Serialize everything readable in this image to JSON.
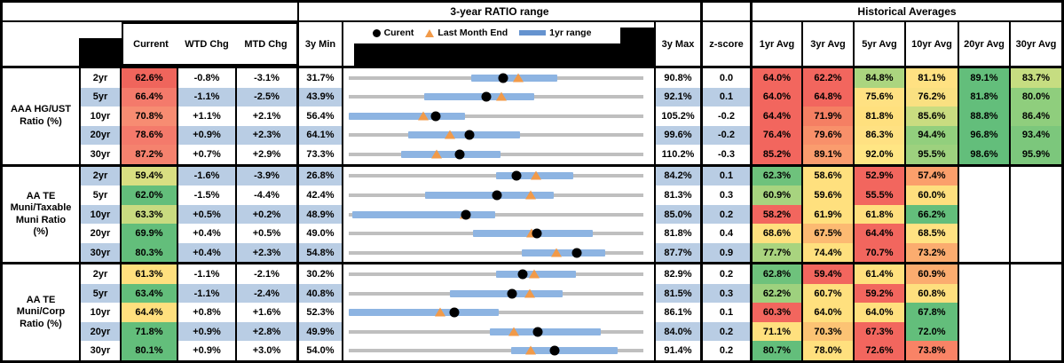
{
  "header": {
    "ratio_range_title": "3-year RATIO range",
    "historical_averages_title": "Historical Averages",
    "current_label": "Current",
    "wtd_label": "WTD Chg",
    "mtd_label": "MTD Chg",
    "min_label": "3y Min",
    "max_label": "3y Max",
    "zscore_label": "z-score",
    "avg_columns": [
      "1yr Avg",
      "3yr Avg",
      "5yr Avg",
      "10yr Avg",
      "20yr Avg",
      "30yr Avg"
    ],
    "legend": {
      "current": "Curent",
      "last_month_end": "Last Month End",
      "one_yr_range": "1yr range"
    }
  },
  "colors": {
    "stripe_blue": "#B9CDE4",
    "range_bar_blue": "#8DB4E2",
    "track_gray": "#BFBFBF",
    "current_marker": "#000000",
    "last_month_end_marker": "#F19A49",
    "legend_dash_blue": "#6593CF",
    "heat_red": "#F2665E",
    "heat_yellow": "#FFE07E",
    "heat_green": "#63BE7B",
    "border": "#000000"
  },
  "chart_data": {
    "type": "table",
    "title": "3-year RATIO range",
    "legend": [
      "Curent",
      "Last Month End",
      "1yr range"
    ],
    "tenors": [
      "2yr",
      "5yr",
      "10yr",
      "20yr",
      "30yr"
    ],
    "groups": [
      {
        "label": "AAA HG/UST Ratio (%)",
        "label_lines": [
          "AAA HG/UST",
          "Ratio (%)"
        ],
        "rows": [
          {
            "tenor": "2yr",
            "current": "62.6%",
            "current_bg": "#EF655C",
            "wtd": "-0.8%",
            "mtd": "-3.1%",
            "min": "31.7%",
            "max": "90.8%",
            "z": "0.0",
            "vmin": 31.7,
            "vmax": 90.8,
            "vcur": 62.6,
            "vlme": 65.7,
            "vlo": 56.3,
            "vhi": 73.6,
            "avgs": [
              {
                "v": "64.0%",
                "bg": "#F2665E"
              },
              {
                "v": "62.2%",
                "bg": "#F2665E"
              },
              {
                "v": "84.8%",
                "bg": "#ABD57F"
              },
              {
                "v": "81.1%",
                "bg": "#FFE182"
              },
              {
                "v": "89.1%",
                "bg": "#63BE7B"
              },
              {
                "v": "83.7%",
                "bg": "#C6DD81"
              }
            ]
          },
          {
            "tenor": "5yr",
            "current": "66.4%",
            "current_bg": "#F47A6B",
            "wtd": "-1.1%",
            "mtd": "-2.5%",
            "min": "43.9%",
            "max": "92.1%",
            "z": "0.1",
            "vmin": 43.9,
            "vmax": 92.1,
            "vcur": 66.4,
            "vlme": 68.9,
            "vlo": 56.2,
            "vhi": 74.3,
            "avgs": [
              {
                "v": "64.0%",
                "bg": "#F2665E"
              },
              {
                "v": "64.8%",
                "bg": "#F2665E"
              },
              {
                "v": "75.6%",
                "bg": "#FFE182"
              },
              {
                "v": "76.2%",
                "bg": "#F9E081"
              },
              {
                "v": "81.8%",
                "bg": "#63BE7B"
              },
              {
                "v": "80.0%",
                "bg": "#8FCE7D"
              }
            ]
          },
          {
            "tenor": "10yr",
            "current": "70.8%",
            "current_bg": "#F78C72",
            "wtd": "+1.1%",
            "mtd": "+2.1%",
            "min": "56.4%",
            "max": "105.2%",
            "z": "-0.2",
            "vmin": 56.4,
            "vmax": 105.2,
            "vcur": 70.8,
            "vlme": 68.7,
            "vlo": 56.4,
            "vhi": 75.6,
            "avgs": [
              {
                "v": "64.4%",
                "bg": "#F2665E"
              },
              {
                "v": "71.9%",
                "bg": "#F57F63"
              },
              {
                "v": "81.8%",
                "bg": "#FFE07E"
              },
              {
                "v": "85.6%",
                "bg": "#C9DC80"
              },
              {
                "v": "88.8%",
                "bg": "#63BE7B"
              },
              {
                "v": "86.4%",
                "bg": "#8FCE7D"
              }
            ]
          },
          {
            "tenor": "20yr",
            "current": "78.6%",
            "current_bg": "#F47A6B",
            "wtd": "+0.9%",
            "mtd": "+2.3%",
            "min": "64.1%",
            "max": "99.6%",
            "z": "-0.2",
            "vmin": 64.1,
            "vmax": 99.6,
            "vcur": 78.6,
            "vlme": 76.3,
            "vlo": 71.3,
            "vhi": 84.7,
            "avgs": [
              {
                "v": "76.4%",
                "bg": "#F2665E"
              },
              {
                "v": "79.6%",
                "bg": "#F8906A"
              },
              {
                "v": "86.3%",
                "bg": "#FFE182"
              },
              {
                "v": "94.4%",
                "bg": "#92CF7D"
              },
              {
                "v": "96.8%",
                "bg": "#63BE7B"
              },
              {
                "v": "93.4%",
                "bg": "#7CC77C"
              }
            ]
          },
          {
            "tenor": "30yr",
            "current": "87.2%",
            "current_bg": "#F5826E",
            "wtd": "+0.7%",
            "mtd": "+2.9%",
            "min": "73.3%",
            "max": "110.2%",
            "z": "-0.3",
            "vmin": 73.3,
            "vmax": 110.2,
            "vcur": 87.2,
            "vlme": 84.3,
            "vlo": 79.9,
            "vhi": 92.3,
            "avgs": [
              {
                "v": "85.2%",
                "bg": "#F2665E"
              },
              {
                "v": "89.1%",
                "bg": "#FA9C6E"
              },
              {
                "v": "92.0%",
                "bg": "#FFE684"
              },
              {
                "v": "95.5%",
                "bg": "#9DD17E"
              },
              {
                "v": "98.6%",
                "bg": "#63BE7B"
              },
              {
                "v": "95.9%",
                "bg": "#7CC77C"
              }
            ]
          }
        ]
      },
      {
        "label": "AA TE Muni/Taxable Muni Ratio (%)",
        "label_lines": [
          "AA TE",
          "Muni/Taxable",
          "Muni Ratio",
          "(%)"
        ],
        "rows": [
          {
            "tenor": "2yr",
            "current": "59.4%",
            "current_bg": "#D9DF82",
            "wtd": "-1.6%",
            "mtd": "-3.9%",
            "min": "26.8%",
            "max": "84.2%",
            "z": "0.1",
            "vmin": 26.8,
            "vmax": 84.2,
            "vcur": 59.4,
            "vlme": 63.3,
            "vlo": 55.5,
            "vhi": 70.6,
            "avgs": [
              {
                "v": "62.3%",
                "bg": "#6EC27C"
              },
              {
                "v": "58.6%",
                "bg": "#FFE07E"
              },
              {
                "v": "52.9%",
                "bg": "#F2665E"
              },
              {
                "v": "57.4%",
                "bg": "#FB9F6B"
              },
              null,
              null
            ]
          },
          {
            "tenor": "5yr",
            "current": "62.0%",
            "current_bg": "#63BE7B",
            "wtd": "-1.5%",
            "mtd": "-4.4%",
            "min": "42.4%",
            "max": "81.3%",
            "z": "0.3",
            "vmin": 42.4,
            "vmax": 81.3,
            "vcur": 62.0,
            "vlme": 66.4,
            "vlo": 52.5,
            "vhi": 69.5,
            "avgs": [
              {
                "v": "60.9%",
                "bg": "#A7D47F"
              },
              {
                "v": "59.6%",
                "bg": "#FFE07E"
              },
              {
                "v": "55.5%",
                "bg": "#F2665E"
              },
              {
                "v": "60.0%",
                "bg": "#FEDF7E"
              },
              null,
              null
            ]
          },
          {
            "tenor": "10yr",
            "current": "63.3%",
            "current_bg": "#C9DB80",
            "wtd": "+0.5%",
            "mtd": "+0.2%",
            "min": "48.9%",
            "max": "85.0%",
            "z": "0.2",
            "vmin": 48.9,
            "vmax": 85.0,
            "vcur": 63.3,
            "vlme": 63.1,
            "vlo": 49.3,
            "vhi": 66.8,
            "avgs": [
              {
                "v": "58.2%",
                "bg": "#F2665E"
              },
              {
                "v": "61.9%",
                "bg": "#FFE07E"
              },
              {
                "v": "61.8%",
                "bg": "#FFDF7E"
              },
              {
                "v": "66.2%",
                "bg": "#63BE7B"
              },
              null,
              null
            ]
          },
          {
            "tenor": "20yr",
            "current": "69.9%",
            "current_bg": "#63BE7B",
            "wtd": "+0.4%",
            "mtd": "+0.5%",
            "min": "49.0%",
            "max": "81.8%",
            "z": "0.4",
            "vmin": 49.0,
            "vmax": 81.8,
            "vcur": 69.9,
            "vlme": 69.4,
            "vlo": 62.8,
            "vhi": 76.2,
            "avgs": [
              {
                "v": "68.6%",
                "bg": "#FFE07E"
              },
              {
                "v": "67.5%",
                "bg": "#FCBA72"
              },
              {
                "v": "64.4%",
                "bg": "#F2665E"
              },
              {
                "v": "68.5%",
                "bg": "#FFE282"
              },
              null,
              null
            ]
          },
          {
            "tenor": "30yr",
            "current": "80.3%",
            "current_bg": "#63BE7B",
            "wtd": "+0.4%",
            "mtd": "+2.3%",
            "min": "54.8%",
            "max": "87.7%",
            "z": "0.9",
            "vmin": 54.8,
            "vmax": 87.7,
            "vcur": 80.3,
            "vlme": 78.0,
            "vlo": 74.1,
            "vhi": 83.4,
            "avgs": [
              {
                "v": "77.7%",
                "bg": "#A9D47F"
              },
              {
                "v": "74.4%",
                "bg": "#FFE07E"
              },
              {
                "v": "70.7%",
                "bg": "#F2665E"
              },
              {
                "v": "73.2%",
                "bg": "#FBAC6F"
              },
              null,
              null
            ]
          }
        ]
      },
      {
        "label": "AA TE Muni/Corp Ratio (%)",
        "label_lines": [
          "AA TE",
          "Muni/Corp",
          "Ratio (%)"
        ],
        "rows": [
          {
            "tenor": "2yr",
            "current": "61.3%",
            "current_bg": "#FFE07E",
            "wtd": "-1.1%",
            "mtd": "-2.1%",
            "min": "30.2%",
            "max": "82.9%",
            "z": "0.2",
            "vmin": 30.2,
            "vmax": 82.9,
            "vcur": 61.3,
            "vlme": 63.4,
            "vlo": 56.6,
            "vhi": 70.8,
            "avgs": [
              {
                "v": "62.8%",
                "bg": "#6EC27C"
              },
              {
                "v": "59.4%",
                "bg": "#F2665E"
              },
              {
                "v": "61.4%",
                "bg": "#FFE07E"
              },
              {
                "v": "60.9%",
                "bg": "#FBAC6F"
              },
              null,
              null
            ]
          },
          {
            "tenor": "5yr",
            "current": "63.4%",
            "current_bg": "#63BE7B",
            "wtd": "-1.1%",
            "mtd": "-2.4%",
            "min": "40.8%",
            "max": "81.5%",
            "z": "0.3",
            "vmin": 40.8,
            "vmax": 81.5,
            "vcur": 63.4,
            "vlme": 65.8,
            "vlo": 54.8,
            "vhi": 70.4,
            "avgs": [
              {
                "v": "62.2%",
                "bg": "#9ED17E"
              },
              {
                "v": "60.7%",
                "bg": "#FFE07E"
              },
              {
                "v": "59.2%",
                "bg": "#F2665E"
              },
              {
                "v": "60.8%",
                "bg": "#FEDF7E"
              },
              null,
              null
            ]
          },
          {
            "tenor": "10yr",
            "current": "64.4%",
            "current_bg": "#FFE07E",
            "wtd": "+0.8%",
            "mtd": "+1.6%",
            "min": "52.3%",
            "max": "86.1%",
            "z": "0.1",
            "vmin": 52.3,
            "vmax": 86.1,
            "vcur": 64.4,
            "vlme": 62.8,
            "vlo": 52.3,
            "vhi": 69.5,
            "avgs": [
              {
                "v": "60.3%",
                "bg": "#F2665E"
              },
              {
                "v": "64.0%",
                "bg": "#FFE07E"
              },
              {
                "v": "64.0%",
                "bg": "#FFE07E"
              },
              {
                "v": "67.8%",
                "bg": "#63BE7B"
              },
              null,
              null
            ]
          },
          {
            "tenor": "20yr",
            "current": "71.8%",
            "current_bg": "#63BE7B",
            "wtd": "+0.9%",
            "mtd": "+2.8%",
            "min": "49.9%",
            "max": "84.0%",
            "z": "0.2",
            "vmin": 49.9,
            "vmax": 84.0,
            "vcur": 71.8,
            "vlme": 69.0,
            "vlo": 66.2,
            "vhi": 79.1,
            "avgs": [
              {
                "v": "71.1%",
                "bg": "#FFE07E"
              },
              {
                "v": "70.3%",
                "bg": "#FCC374"
              },
              {
                "v": "67.3%",
                "bg": "#F2665E"
              },
              {
                "v": "72.0%",
                "bg": "#63BE7B"
              },
              null,
              null
            ]
          },
          {
            "tenor": "30yr",
            "current": "80.1%",
            "current_bg": "#63BE7B",
            "wtd": "+0.9%",
            "mtd": "+3.0%",
            "min": "54.0%",
            "max": "91.4%",
            "z": "0.2",
            "vmin": 54.0,
            "vmax": 91.4,
            "vcur": 80.1,
            "vlme": 77.1,
            "vlo": 74.6,
            "vhi": 88.1,
            "avgs": [
              {
                "v": "80.7%",
                "bg": "#63BE7B"
              },
              {
                "v": "78.0%",
                "bg": "#FFE07E"
              },
              {
                "v": "72.6%",
                "bg": "#F2665E"
              },
              {
                "v": "73.8%",
                "bg": "#F98366"
              },
              null,
              null
            ]
          }
        ]
      }
    ]
  }
}
